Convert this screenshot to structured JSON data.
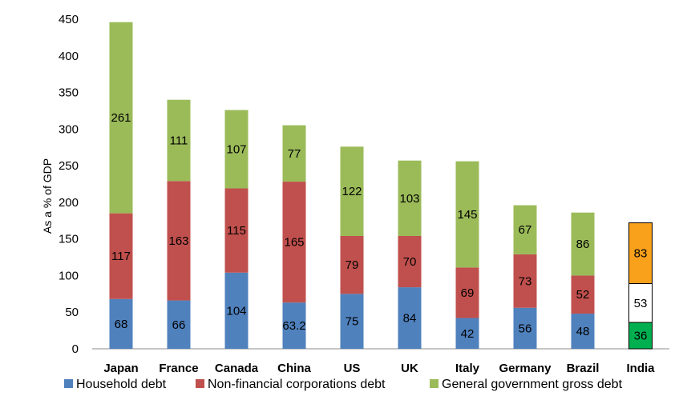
{
  "chart_data": {
    "type": "bar",
    "stacked": true,
    "ylabel": "As a % of GDP",
    "ylim": [
      0,
      450
    ],
    "yticks": [
      0,
      50,
      100,
      150,
      200,
      250,
      300,
      350,
      400,
      450
    ],
    "grid": false,
    "legend_position": "bottom",
    "categories": [
      "Japan",
      "France",
      "Canada",
      "China",
      "US",
      "UK",
      "Italy",
      "Germany",
      "Brazil",
      "India"
    ],
    "series": [
      {
        "name": "Household debt",
        "color": "#4f81bd",
        "values": [
          68,
          66,
          104,
          63.2,
          75,
          84,
          42,
          56,
          48,
          null
        ],
        "labels": [
          "68",
          "66",
          "104",
          "63.2",
          "75",
          "84",
          "42",
          "56",
          "48",
          ""
        ]
      },
      {
        "name": "Non-financial corporations debt",
        "color": "#c0504d",
        "values": [
          117,
          163,
          115,
          165,
          79,
          70,
          69,
          73,
          52,
          null
        ],
        "labels": [
          "117",
          "163",
          "115",
          "165",
          "79",
          "70",
          "69",
          "73",
          "52",
          ""
        ]
      },
      {
        "name": "General government gross debt",
        "color": "#9bbb59",
        "values": [
          261,
          111,
          107,
          77,
          122,
          103,
          145,
          67,
          86,
          null
        ],
        "labels": [
          "261",
          "111",
          "107",
          "77",
          "122",
          "103",
          "145",
          "67",
          "86",
          ""
        ]
      }
    ],
    "special_bar": {
      "category": "India",
      "segments": [
        {
          "value": 36,
          "label": "36",
          "color": "#00b050"
        },
        {
          "value": 53,
          "label": "53",
          "color": "#ffffff"
        },
        {
          "value": 83,
          "label": "83",
          "color": "#f9a11b"
        }
      ]
    }
  }
}
